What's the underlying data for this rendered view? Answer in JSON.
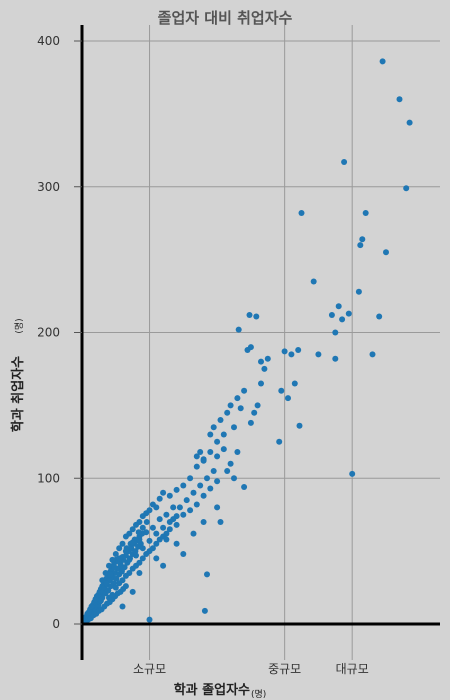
{
  "chart_data": {
    "type": "scatter",
    "title": "졸업자 대비 취업자수",
    "xlabel": "학과 졸업자수",
    "xlabel_unit": "(명)",
    "ylabel": "학과 취업자수",
    "ylabel_unit": "(명)",
    "ylim": [
      0,
      400
    ],
    "y_ticks": [
      0,
      100,
      200,
      300,
      400
    ],
    "x_ticks": [
      {
        "value": 100,
        "label": "소규모"
      },
      {
        "value": 300,
        "label": "중규모"
      },
      {
        "value": 400,
        "label": "대규모"
      }
    ],
    "xlim": [
      0,
      530
    ],
    "grid": true,
    "color": "#1f77b4",
    "points": [
      [
        2,
        1
      ],
      [
        3,
        2
      ],
      [
        4,
        1
      ],
      [
        5,
        3
      ],
      [
        6,
        2
      ],
      [
        7,
        4
      ],
      [
        8,
        3
      ],
      [
        9,
        5
      ],
      [
        10,
        4
      ],
      [
        11,
        6
      ],
      [
        12,
        5
      ],
      [
        13,
        7
      ],
      [
        14,
        6
      ],
      [
        15,
        9
      ],
      [
        16,
        8
      ],
      [
        17,
        10
      ],
      [
        18,
        9
      ],
      [
        19,
        11
      ],
      [
        20,
        10
      ],
      [
        21,
        13
      ],
      [
        22,
        12
      ],
      [
        23,
        14
      ],
      [
        24,
        13
      ],
      [
        25,
        16
      ],
      [
        26,
        15
      ],
      [
        27,
        17
      ],
      [
        28,
        16
      ],
      [
        29,
        19
      ],
      [
        30,
        18
      ],
      [
        4,
        4
      ],
      [
        6,
        5
      ],
      [
        8,
        7
      ],
      [
        10,
        8
      ],
      [
        12,
        10
      ],
      [
        14,
        12
      ],
      [
        16,
        13
      ],
      [
        18,
        15
      ],
      [
        20,
        17
      ],
      [
        22,
        19
      ],
      [
        24,
        20
      ],
      [
        26,
        22
      ],
      [
        28,
        24
      ],
      [
        30,
        26
      ],
      [
        32,
        27
      ],
      [
        34,
        29
      ],
      [
        36,
        31
      ],
      [
        38,
        33
      ],
      [
        40,
        34
      ],
      [
        42,
        36
      ],
      [
        44,
        38
      ],
      [
        46,
        40
      ],
      [
        48,
        42
      ],
      [
        50,
        44
      ],
      [
        5,
        2
      ],
      [
        9,
        3
      ],
      [
        13,
        4
      ],
      [
        17,
        6
      ],
      [
        21,
        7
      ],
      [
        25,
        9
      ],
      [
        29,
        10
      ],
      [
        33,
        12
      ],
      [
        37,
        14
      ],
      [
        41,
        15
      ],
      [
        45,
        17
      ],
      [
        49,
        19
      ],
      [
        53,
        21
      ],
      [
        57,
        22
      ],
      [
        61,
        24
      ],
      [
        65,
        26
      ],
      [
        31,
        22
      ],
      [
        33,
        25
      ],
      [
        35,
        21
      ],
      [
        37,
        27
      ],
      [
        39,
        23
      ],
      [
        41,
        30
      ],
      [
        43,
        26
      ],
      [
        45,
        32
      ],
      [
        47,
        28
      ],
      [
        49,
        35
      ],
      [
        51,
        31
      ],
      [
        53,
        38
      ],
      [
        55,
        34
      ],
      [
        57,
        41
      ],
      [
        59,
        36
      ],
      [
        61,
        44
      ],
      [
        63,
        39
      ],
      [
        65,
        47
      ],
      [
        67,
        42
      ],
      [
        69,
        50
      ],
      [
        71,
        45
      ],
      [
        73,
        52
      ],
      [
        75,
        48
      ],
      [
        77,
        55
      ],
      [
        79,
        50
      ],
      [
        81,
        57
      ],
      [
        83,
        53
      ],
      [
        85,
        60
      ],
      [
        87,
        55
      ],
      [
        89,
        62
      ],
      [
        35,
        35
      ],
      [
        40,
        40
      ],
      [
        45,
        44
      ],
      [
        50,
        48
      ],
      [
        55,
        52
      ],
      [
        60,
        55
      ],
      [
        65,
        60
      ],
      [
        70,
        62
      ],
      [
        75,
        65
      ],
      [
        80,
        68
      ],
      [
        85,
        70
      ],
      [
        90,
        74
      ],
      [
        95,
        76
      ],
      [
        100,
        78
      ],
      [
        105,
        82
      ],
      [
        110,
        80
      ],
      [
        115,
        86
      ],
      [
        120,
        90
      ],
      [
        40,
        18
      ],
      [
        45,
        20
      ],
      [
        50,
        25
      ],
      [
        55,
        28
      ],
      [
        60,
        30
      ],
      [
        65,
        33
      ],
      [
        70,
        35
      ],
      [
        75,
        38
      ],
      [
        80,
        40
      ],
      [
        85,
        42
      ],
      [
        90,
        45
      ],
      [
        95,
        48
      ],
      [
        100,
        50
      ],
      [
        105,
        52
      ],
      [
        110,
        55
      ],
      [
        115,
        58
      ],
      [
        120,
        60
      ],
      [
        125,
        62
      ],
      [
        30,
        30
      ],
      [
        36,
        28
      ],
      [
        42,
        34
      ],
      [
        48,
        39
      ],
      [
        54,
        43
      ],
      [
        60,
        46
      ],
      [
        66,
        52
      ],
      [
        72,
        55
      ],
      [
        78,
        58
      ],
      [
        84,
        63
      ],
      [
        90,
        66
      ],
      [
        96,
        70
      ],
      [
        55,
        45
      ],
      [
        60,
        38
      ],
      [
        65,
        50
      ],
      [
        70,
        44
      ],
      [
        75,
        56
      ],
      [
        80,
        47
      ],
      [
        85,
        58
      ],
      [
        90,
        52
      ],
      [
        95,
        63
      ],
      [
        100,
        57
      ],
      [
        105,
        66
      ],
      [
        110,
        62
      ],
      [
        115,
        72
      ],
      [
        120,
        66
      ],
      [
        125,
        75
      ],
      [
        130,
        70
      ],
      [
        135,
        80
      ],
      [
        140,
        74
      ],
      [
        125,
        58
      ],
      [
        130,
        65
      ],
      [
        135,
        72
      ],
      [
        140,
        68
      ],
      [
        145,
        80
      ],
      [
        150,
        75
      ],
      [
        155,
        85
      ],
      [
        160,
        78
      ],
      [
        165,
        90
      ],
      [
        170,
        82
      ],
      [
        175,
        95
      ],
      [
        180,
        88
      ],
      [
        185,
        100
      ],
      [
        190,
        93
      ],
      [
        195,
        105
      ],
      [
        200,
        98
      ],
      [
        130,
        88
      ],
      [
        140,
        92
      ],
      [
        150,
        95
      ],
      [
        160,
        100
      ],
      [
        170,
        108
      ],
      [
        180,
        112
      ],
      [
        190,
        118
      ],
      [
        200,
        115
      ],
      [
        210,
        120
      ],
      [
        60,
        12
      ],
      [
        75,
        22
      ],
      [
        85,
        35
      ],
      [
        100,
        3
      ],
      [
        110,
        45
      ],
      [
        120,
        40
      ],
      [
        140,
        55
      ],
      [
        150,
        48
      ],
      [
        165,
        62
      ],
      [
        180,
        70
      ],
      [
        185,
        34
      ],
      [
        182,
        9
      ],
      [
        200,
        80
      ],
      [
        205,
        70
      ],
      [
        170,
        115
      ],
      [
        175,
        118
      ],
      [
        180,
        113
      ],
      [
        190,
        130
      ],
      [
        195,
        135
      ],
      [
        200,
        125
      ],
      [
        205,
        140
      ],
      [
        210,
        130
      ],
      [
        215,
        145
      ],
      [
        220,
        150
      ],
      [
        225,
        135
      ],
      [
        230,
        155
      ],
      [
        235,
        148
      ],
      [
        240,
        160
      ],
      [
        215,
        105
      ],
      [
        220,
        110
      ],
      [
        225,
        100
      ],
      [
        230,
        118
      ],
      [
        240,
        94
      ],
      [
        250,
        138
      ],
      [
        255,
        145
      ],
      [
        260,
        150
      ],
      [
        265,
        165
      ],
      [
        270,
        175
      ],
      [
        265,
        180
      ],
      [
        275,
        182
      ],
      [
        245,
        188
      ],
      [
        250,
        190
      ],
      [
        232,
        202
      ],
      [
        248,
        212
      ],
      [
        258,
        211
      ],
      [
        295,
        160
      ],
      [
        305,
        155
      ],
      [
        315,
        165
      ],
      [
        310,
        185
      ],
      [
        300,
        187
      ],
      [
        320,
        188
      ],
      [
        322,
        136
      ],
      [
        292,
        125
      ],
      [
        350,
        185
      ],
      [
        325,
        282
      ],
      [
        343,
        235
      ],
      [
        370,
        212
      ],
      [
        375,
        200
      ],
      [
        380,
        218
      ],
      [
        385,
        209
      ],
      [
        375,
        182
      ],
      [
        395,
        213
      ],
      [
        410,
        228
      ],
      [
        415,
        264
      ],
      [
        412,
        260
      ],
      [
        420,
        282
      ],
      [
        430,
        185
      ],
      [
        440,
        211
      ],
      [
        450,
        255
      ],
      [
        445,
        386
      ],
      [
        470,
        360
      ],
      [
        480,
        299
      ],
      [
        485,
        344
      ],
      [
        388,
        317
      ],
      [
        400,
        103
      ]
    ]
  }
}
